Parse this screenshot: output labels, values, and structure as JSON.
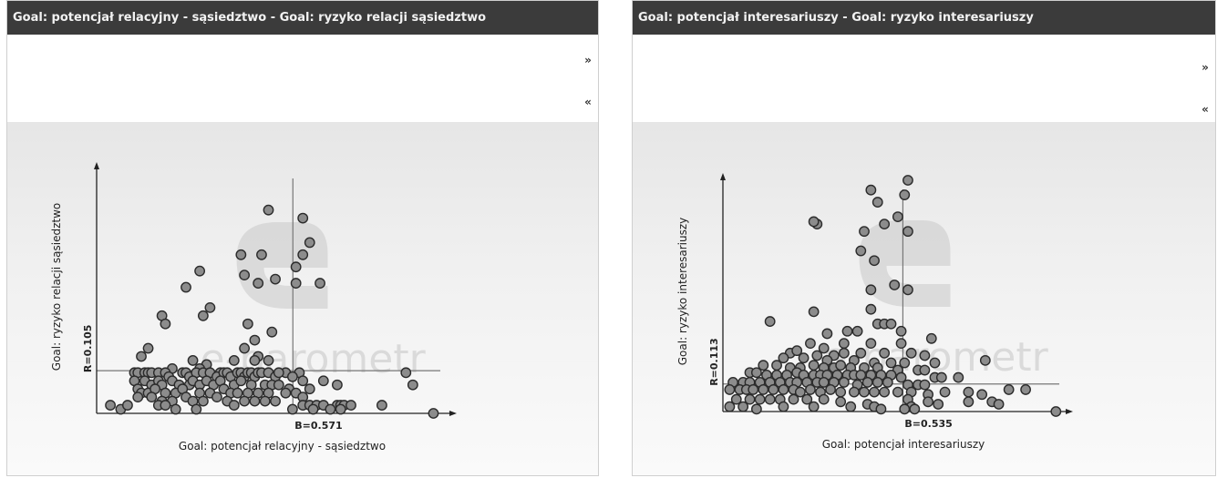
{
  "panels": [
    {
      "title": "Goal: potencjał relacyjny - sąsiedztwo - Goal: ryzyko relacji sąsiedztwo",
      "nav": {
        "forward": "»",
        "back": "«"
      }
    },
    {
      "title": "Goal: potencjał interesariuszy - Goal: ryzyko interesariuszy",
      "nav": {
        "forward": "»",
        "back": "«"
      }
    }
  ],
  "watermark": "e-barometr",
  "colors": {
    "titlebar": "#3b3b3b",
    "point_fill": "#8c8c8c",
    "point_stroke": "#2b2b2b",
    "axis": "#222222",
    "mean_line": "#777777"
  },
  "chart_data": [
    {
      "type": "scatter",
      "xlabel": "Goal: potencjał relacyjny - sąsiedztwo",
      "ylabel": "Goal: ryzyko relacji sąsiedztwo",
      "mean_x_label": "B=0.571",
      "mean_y_label": "R=0.105",
      "mean_x": 0.571,
      "mean_y": 0.105,
      "xlim": [
        0,
        1
      ],
      "ylim": [
        0,
        0.6
      ],
      "points": [
        [
          0.5,
          0.5
        ],
        [
          0.6,
          0.48
        ],
        [
          0.62,
          0.42
        ],
        [
          0.42,
          0.39
        ],
        [
          0.48,
          0.39
        ],
        [
          0.58,
          0.36
        ],
        [
          0.6,
          0.39
        ],
        [
          0.3,
          0.35
        ],
        [
          0.43,
          0.34
        ],
        [
          0.52,
          0.33
        ],
        [
          0.47,
          0.32
        ],
        [
          0.58,
          0.32
        ],
        [
          0.65,
          0.32
        ],
        [
          0.26,
          0.31
        ],
        [
          0.33,
          0.26
        ],
        [
          0.31,
          0.24
        ],
        [
          0.19,
          0.24
        ],
        [
          0.2,
          0.22
        ],
        [
          0.44,
          0.22
        ],
        [
          0.51,
          0.2
        ],
        [
          0.46,
          0.18
        ],
        [
          0.43,
          0.16
        ],
        [
          0.15,
          0.16
        ],
        [
          0.47,
          0.14
        ],
        [
          0.13,
          0.14
        ],
        [
          0.28,
          0.13
        ],
        [
          0.32,
          0.12
        ],
        [
          0.4,
          0.13
        ],
        [
          0.46,
          0.13
        ],
        [
          0.5,
          0.13
        ],
        [
          0.22,
          0.11
        ],
        [
          0.3,
          0.11
        ],
        [
          0.36,
          0.1
        ],
        [
          0.55,
          0.1
        ],
        [
          0.59,
          0.1
        ],
        [
          0.9,
          0.1
        ],
        [
          0.11,
          0.1
        ],
        [
          0.12,
          0.1
        ],
        [
          0.14,
          0.1
        ],
        [
          0.15,
          0.1
        ],
        [
          0.16,
          0.1
        ],
        [
          0.18,
          0.1
        ],
        [
          0.2,
          0.1
        ],
        [
          0.21,
          0.09
        ],
        [
          0.25,
          0.1
        ],
        [
          0.26,
          0.1
        ],
        [
          0.27,
          0.09
        ],
        [
          0.29,
          0.1
        ],
        [
          0.31,
          0.1
        ],
        [
          0.33,
          0.1
        ],
        [
          0.35,
          0.09
        ],
        [
          0.37,
          0.1
        ],
        [
          0.38,
          0.1
        ],
        [
          0.39,
          0.09
        ],
        [
          0.41,
          0.1
        ],
        [
          0.42,
          0.1
        ],
        [
          0.43,
          0.09
        ],
        [
          0.44,
          0.1
        ],
        [
          0.45,
          0.1
        ],
        [
          0.46,
          0.09
        ],
        [
          0.47,
          0.1
        ],
        [
          0.48,
          0.1
        ],
        [
          0.5,
          0.1
        ],
        [
          0.52,
          0.09
        ],
        [
          0.53,
          0.1
        ],
        [
          0.57,
          0.09
        ],
        [
          0.6,
          0.08
        ],
        [
          0.66,
          0.08
        ],
        [
          0.11,
          0.08
        ],
        [
          0.14,
          0.08
        ],
        [
          0.16,
          0.07
        ],
        [
          0.18,
          0.08
        ],
        [
          0.19,
          0.07
        ],
        [
          0.22,
          0.08
        ],
        [
          0.24,
          0.07
        ],
        [
          0.27,
          0.07
        ],
        [
          0.28,
          0.08
        ],
        [
          0.3,
          0.07
        ],
        [
          0.32,
          0.08
        ],
        [
          0.34,
          0.07
        ],
        [
          0.36,
          0.08
        ],
        [
          0.4,
          0.07
        ],
        [
          0.42,
          0.08
        ],
        [
          0.45,
          0.07
        ],
        [
          0.49,
          0.07
        ],
        [
          0.51,
          0.07
        ],
        [
          0.53,
          0.07
        ],
        [
          0.56,
          0.06
        ],
        [
          0.62,
          0.06
        ],
        [
          0.7,
          0.07
        ],
        [
          0.92,
          0.07
        ],
        [
          0.12,
          0.06
        ],
        [
          0.13,
          0.05
        ],
        [
          0.15,
          0.05
        ],
        [
          0.17,
          0.06
        ],
        [
          0.2,
          0.05
        ],
        [
          0.23,
          0.05
        ],
        [
          0.25,
          0.06
        ],
        [
          0.3,
          0.05
        ],
        [
          0.33,
          0.05
        ],
        [
          0.37,
          0.06
        ],
        [
          0.39,
          0.05
        ],
        [
          0.41,
          0.05
        ],
        [
          0.44,
          0.05
        ],
        [
          0.47,
          0.05
        ],
        [
          0.5,
          0.05
        ],
        [
          0.55,
          0.05
        ],
        [
          0.58,
          0.05
        ],
        [
          0.6,
          0.04
        ],
        [
          0.12,
          0.04
        ],
        [
          0.16,
          0.04
        ],
        [
          0.19,
          0.03
        ],
        [
          0.22,
          0.03
        ],
        [
          0.26,
          0.04
        ],
        [
          0.28,
          0.03
        ],
        [
          0.31,
          0.03
        ],
        [
          0.35,
          0.04
        ],
        [
          0.38,
          0.03
        ],
        [
          0.43,
          0.03
        ],
        [
          0.46,
          0.03
        ],
        [
          0.49,
          0.03
        ],
        [
          0.52,
          0.03
        ],
        [
          0.6,
          0.02
        ],
        [
          0.62,
          0.02
        ],
        [
          0.64,
          0.02
        ],
        [
          0.66,
          0.02
        ],
        [
          0.7,
          0.02
        ],
        [
          0.71,
          0.02
        ],
        [
          0.72,
          0.02
        ],
        [
          0.74,
          0.02
        ],
        [
          0.83,
          0.02
        ],
        [
          0.04,
          0.02
        ],
        [
          0.07,
          0.01
        ],
        [
          0.09,
          0.02
        ],
        [
          0.18,
          0.02
        ],
        [
          0.2,
          0.02
        ],
        [
          0.23,
          0.01
        ],
        [
          0.29,
          0.01
        ],
        [
          0.4,
          0.02
        ],
        [
          0.57,
          0.01
        ],
        [
          0.63,
          0.01
        ],
        [
          0.68,
          0.01
        ],
        [
          0.71,
          0.01
        ],
        [
          0.98,
          0.0
        ]
      ]
    },
    {
      "type": "scatter",
      "xlabel": "Goal: potencjał interesariuszy",
      "ylabel": "Goal: ryzyko interesariuszy",
      "mean_x_label": "B=0.535",
      "mean_y_label": "R=0.113",
      "mean_x": 0.535,
      "mean_y": 0.113,
      "xlim": [
        0,
        1
      ],
      "ylim": [
        0,
        0.95
      ],
      "points": [
        [
          0.55,
          0.95
        ],
        [
          0.44,
          0.91
        ],
        [
          0.54,
          0.89
        ],
        [
          0.46,
          0.86
        ],
        [
          0.52,
          0.8
        ],
        [
          0.28,
          0.77
        ],
        [
          0.27,
          0.78
        ],
        [
          0.48,
          0.77
        ],
        [
          0.42,
          0.74
        ],
        [
          0.55,
          0.74
        ],
        [
          0.41,
          0.66
        ],
        [
          0.45,
          0.62
        ],
        [
          0.51,
          0.52
        ],
        [
          0.44,
          0.5
        ],
        [
          0.55,
          0.5
        ],
        [
          0.27,
          0.41
        ],
        [
          0.44,
          0.42
        ],
        [
          0.14,
          0.37
        ],
        [
          0.46,
          0.36
        ],
        [
          0.48,
          0.36
        ],
        [
          0.5,
          0.36
        ],
        [
          0.31,
          0.32
        ],
        [
          0.37,
          0.33
        ],
        [
          0.4,
          0.33
        ],
        [
          0.53,
          0.33
        ],
        [
          0.26,
          0.28
        ],
        [
          0.36,
          0.28
        ],
        [
          0.53,
          0.28
        ],
        [
          0.62,
          0.3
        ],
        [
          0.3,
          0.26
        ],
        [
          0.44,
          0.28
        ],
        [
          0.2,
          0.24
        ],
        [
          0.22,
          0.25
        ],
        [
          0.28,
          0.23
        ],
        [
          0.33,
          0.23
        ],
        [
          0.36,
          0.24
        ],
        [
          0.41,
          0.24
        ],
        [
          0.48,
          0.24
        ],
        [
          0.56,
          0.24
        ],
        [
          0.6,
          0.23
        ],
        [
          0.18,
          0.22
        ],
        [
          0.24,
          0.22
        ],
        [
          0.31,
          0.21
        ],
        [
          0.39,
          0.21
        ],
        [
          0.45,
          0.2
        ],
        [
          0.5,
          0.2
        ],
        [
          0.54,
          0.2
        ],
        [
          0.63,
          0.2
        ],
        [
          0.78,
          0.21
        ],
        [
          0.12,
          0.19
        ],
        [
          0.16,
          0.19
        ],
        [
          0.2,
          0.18
        ],
        [
          0.23,
          0.18
        ],
        [
          0.27,
          0.19
        ],
        [
          0.3,
          0.18
        ],
        [
          0.33,
          0.18
        ],
        [
          0.35,
          0.19
        ],
        [
          0.38,
          0.18
        ],
        [
          0.42,
          0.18
        ],
        [
          0.46,
          0.18
        ],
        [
          0.52,
          0.17
        ],
        [
          0.58,
          0.17
        ],
        [
          0.6,
          0.17
        ],
        [
          0.08,
          0.16
        ],
        [
          0.1,
          0.16
        ],
        [
          0.13,
          0.15
        ],
        [
          0.16,
          0.15
        ],
        [
          0.19,
          0.15
        ],
        [
          0.22,
          0.16
        ],
        [
          0.24,
          0.15
        ],
        [
          0.27,
          0.15
        ],
        [
          0.29,
          0.15
        ],
        [
          0.31,
          0.15
        ],
        [
          0.34,
          0.15
        ],
        [
          0.37,
          0.15
        ],
        [
          0.39,
          0.15
        ],
        [
          0.41,
          0.15
        ],
        [
          0.44,
          0.15
        ],
        [
          0.47,
          0.15
        ],
        [
          0.5,
          0.15
        ],
        [
          0.53,
          0.14
        ],
        [
          0.63,
          0.14
        ],
        [
          0.65,
          0.14
        ],
        [
          0.7,
          0.14
        ],
        [
          0.03,
          0.12
        ],
        [
          0.06,
          0.12
        ],
        [
          0.08,
          0.12
        ],
        [
          0.11,
          0.12
        ],
        [
          0.14,
          0.12
        ],
        [
          0.17,
          0.12
        ],
        [
          0.2,
          0.12
        ],
        [
          0.22,
          0.12
        ],
        [
          0.25,
          0.12
        ],
        [
          0.28,
          0.12
        ],
        [
          0.3,
          0.12
        ],
        [
          0.33,
          0.12
        ],
        [
          0.36,
          0.12
        ],
        [
          0.4,
          0.11
        ],
        [
          0.43,
          0.12
        ],
        [
          0.46,
          0.12
        ],
        [
          0.49,
          0.12
        ],
        [
          0.55,
          0.11
        ],
        [
          0.58,
          0.11
        ],
        [
          0.6,
          0.11
        ],
        [
          0.02,
          0.09
        ],
        [
          0.05,
          0.09
        ],
        [
          0.07,
          0.09
        ],
        [
          0.09,
          0.09
        ],
        [
          0.12,
          0.09
        ],
        [
          0.15,
          0.09
        ],
        [
          0.18,
          0.09
        ],
        [
          0.21,
          0.09
        ],
        [
          0.23,
          0.08
        ],
        [
          0.26,
          0.09
        ],
        [
          0.29,
          0.08
        ],
        [
          0.32,
          0.09
        ],
        [
          0.35,
          0.08
        ],
        [
          0.39,
          0.08
        ],
        [
          0.42,
          0.08
        ],
        [
          0.45,
          0.08
        ],
        [
          0.48,
          0.08
        ],
        [
          0.52,
          0.08
        ],
        [
          0.56,
          0.08
        ],
        [
          0.61,
          0.07
        ],
        [
          0.66,
          0.08
        ],
        [
          0.73,
          0.08
        ],
        [
          0.77,
          0.07
        ],
        [
          0.85,
          0.09
        ],
        [
          0.9,
          0.09
        ],
        [
          0.04,
          0.05
        ],
        [
          0.08,
          0.05
        ],
        [
          0.11,
          0.05
        ],
        [
          0.14,
          0.05
        ],
        [
          0.17,
          0.05
        ],
        [
          0.21,
          0.05
        ],
        [
          0.25,
          0.05
        ],
        [
          0.3,
          0.05
        ],
        [
          0.35,
          0.04
        ],
        [
          0.43,
          0.03
        ],
        [
          0.45,
          0.02
        ],
        [
          0.55,
          0.05
        ],
        [
          0.56,
          0.02
        ],
        [
          0.61,
          0.04
        ],
        [
          0.64,
          0.03
        ],
        [
          0.73,
          0.04
        ],
        [
          0.8,
          0.04
        ],
        [
          0.82,
          0.03
        ],
        [
          0.02,
          0.02
        ],
        [
          0.06,
          0.02
        ],
        [
          0.1,
          0.01
        ],
        [
          0.18,
          0.02
        ],
        [
          0.27,
          0.02
        ],
        [
          0.38,
          0.02
        ],
        [
          0.47,
          0.01
        ],
        [
          0.54,
          0.01
        ],
        [
          0.57,
          0.01
        ],
        [
          0.99,
          0.0
        ]
      ]
    }
  ]
}
